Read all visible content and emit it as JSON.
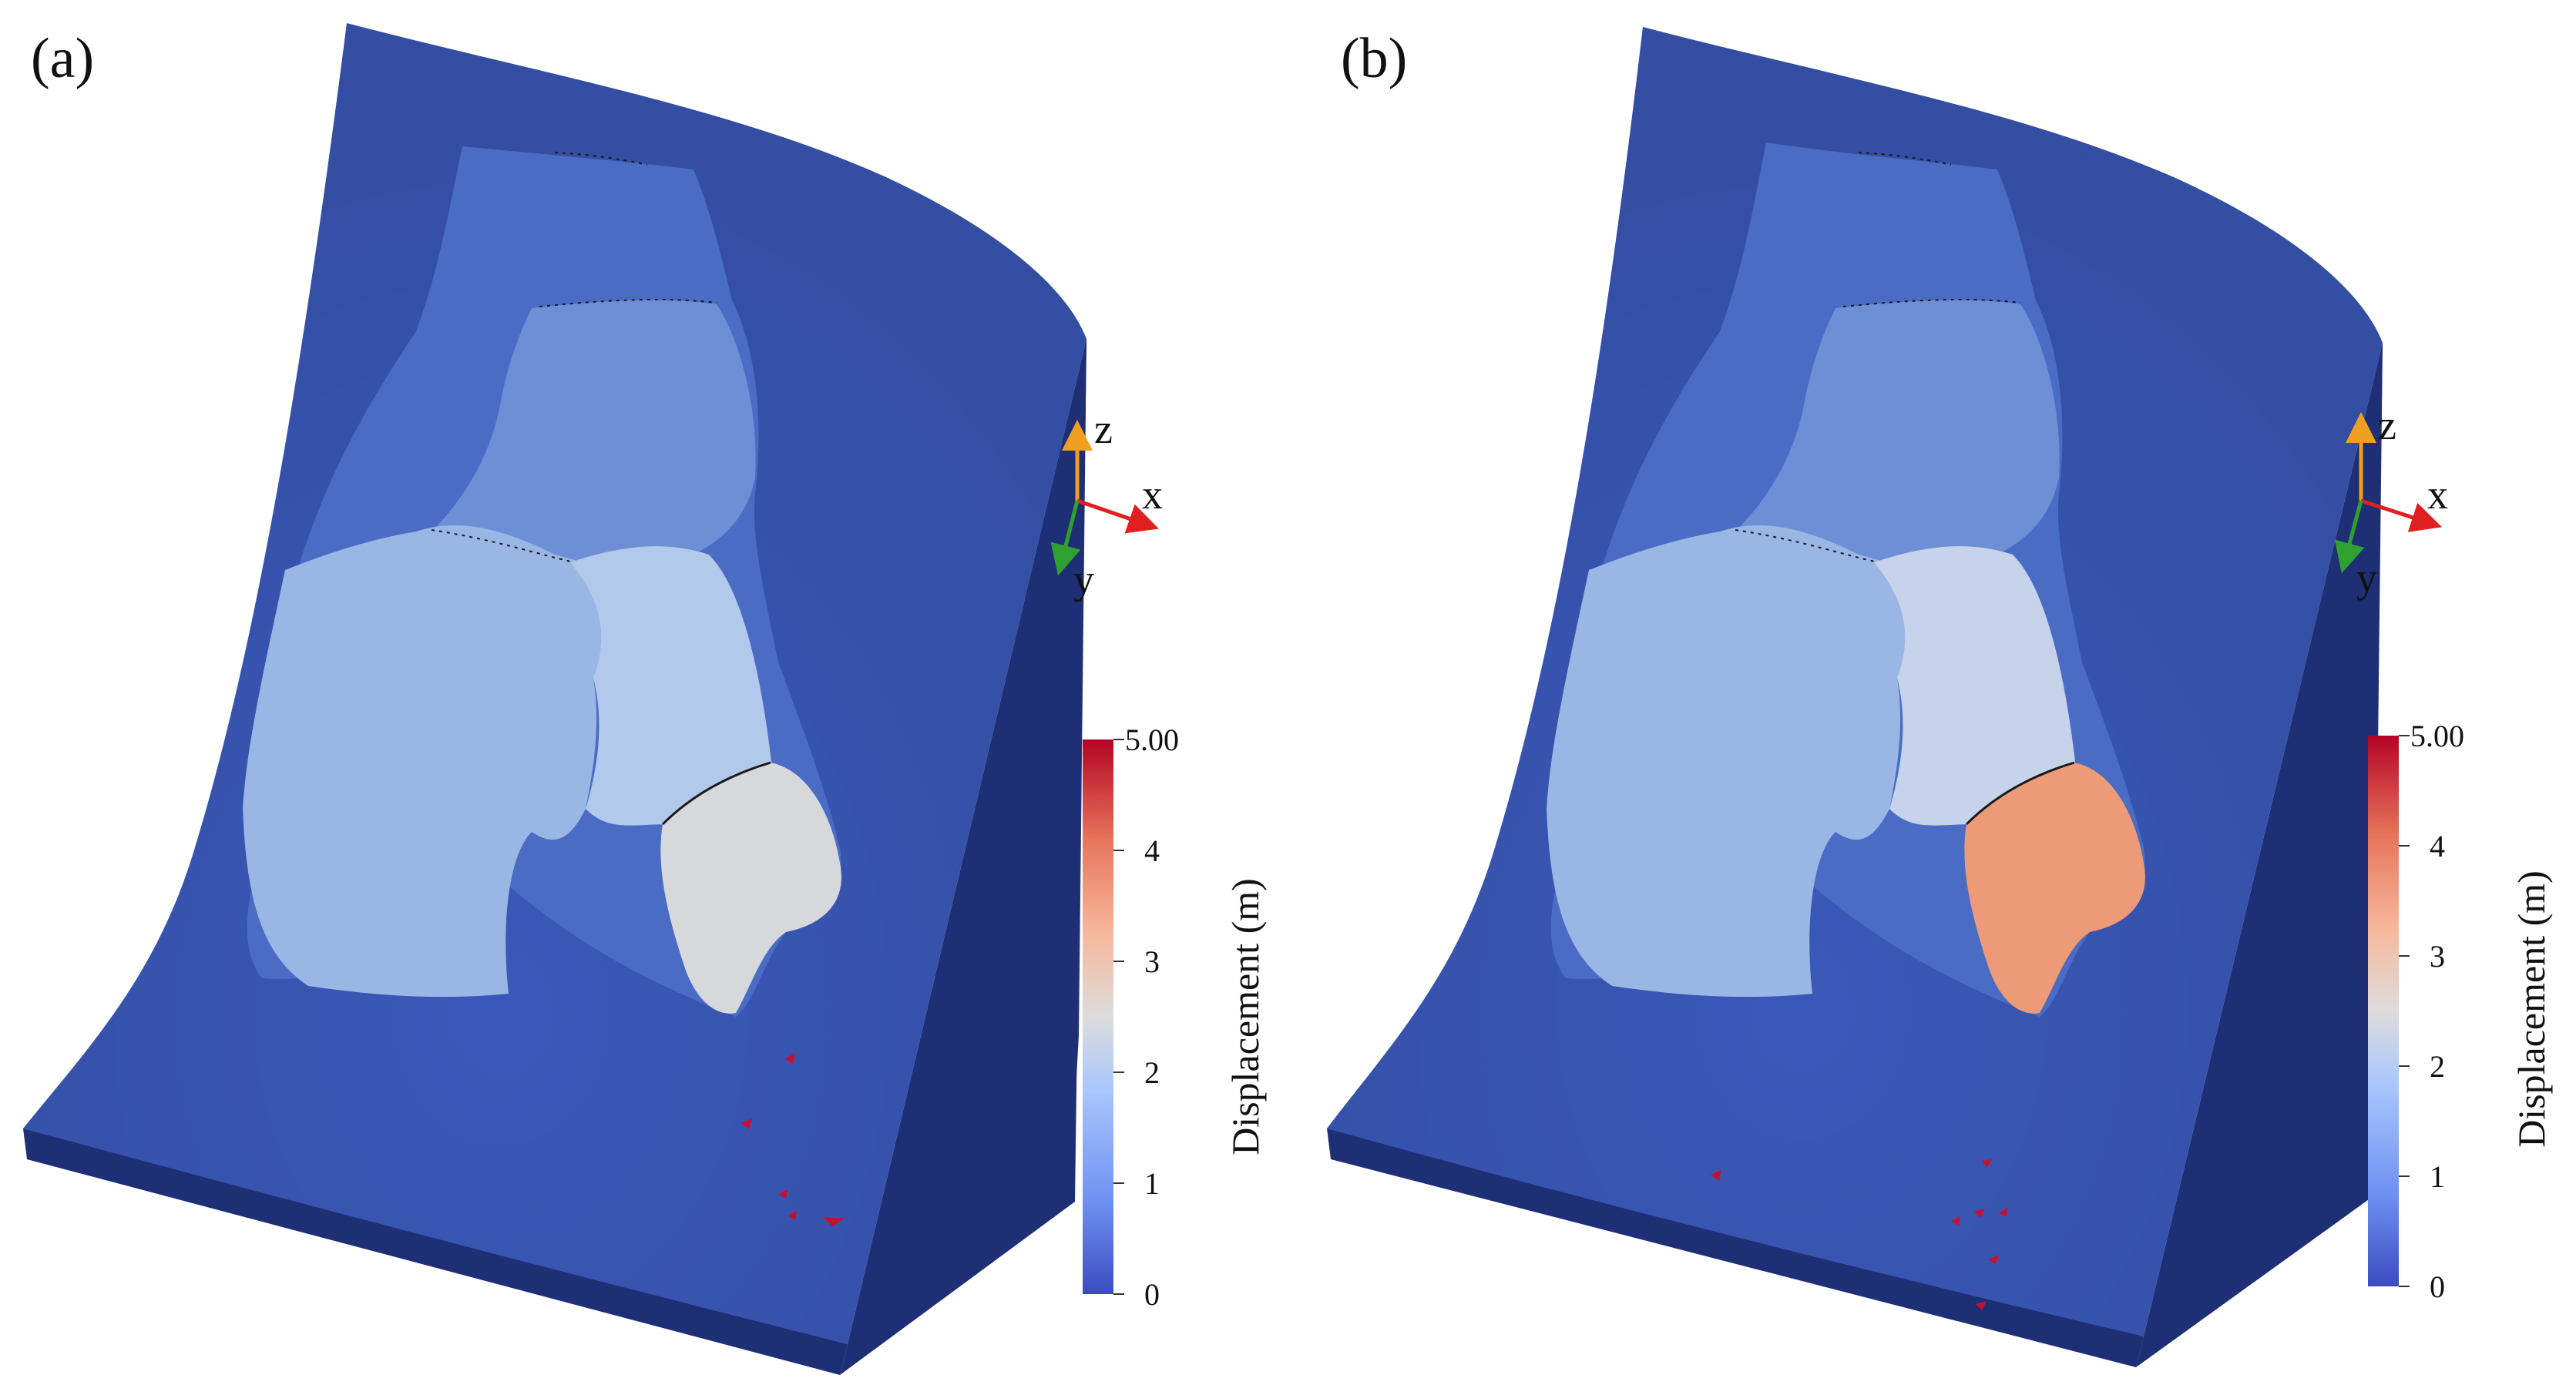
{
  "panels": [
    {
      "label": "(a)",
      "axes": {
        "z": "z",
        "x": "x",
        "y": "y"
      },
      "colorbar": {
        "title": "Displacement (m)",
        "ticks": [
          "5.00",
          "4",
          "3",
          "2",
          "1",
          "0"
        ]
      },
      "zone_colors": {
        "surface": "#3a58b8",
        "outer_zone": "#4a6cc4",
        "upper_zone": "#6d8fd6",
        "left_zone": "#9ab6e4",
        "mid_zone": "#b2c9ec",
        "tip_zone": "#d6d8dc"
      }
    },
    {
      "label": "(b)",
      "axes": {
        "z": "z",
        "x": "x",
        "y": "y"
      },
      "colorbar": {
        "title": "Displacement (m)",
        "ticks": [
          "5.00",
          "4",
          "3",
          "2",
          "1",
          "0"
        ]
      },
      "zone_colors": {
        "surface": "#3a58b8",
        "outer_zone": "#4a6cc4",
        "upper_zone": "#6d8fd6",
        "left_zone": "#9ab6e4",
        "mid_zone": "#c6d3ea",
        "tip_zone": "#ec9a78"
      }
    }
  ],
  "colormap": [
    "#3b4cc0",
    "#6f92f3",
    "#aac7fd",
    "#dddcdc",
    "#f7b89c",
    "#e7745b",
    "#b40426"
  ],
  "side_color": "#22347f",
  "front_color": "#1e2f75",
  "marker_color": "#c8102e"
}
